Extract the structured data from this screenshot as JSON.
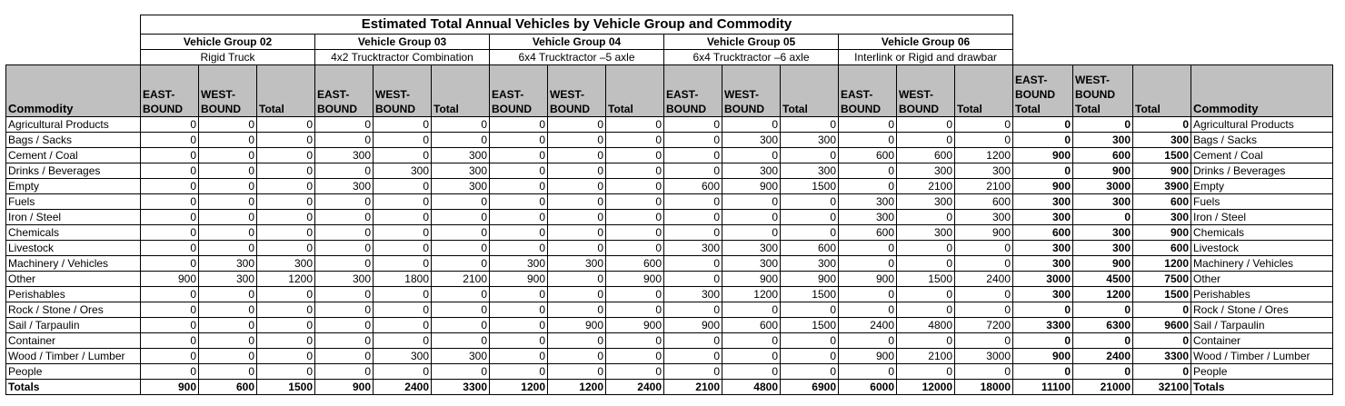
{
  "title": "Estimated Total Annual Vehicles by Vehicle Group and Commodity",
  "groups": [
    {
      "name": "Vehicle Group 02",
      "desc": "Rigid Truck"
    },
    {
      "name": "Vehicle Group 03",
      "desc": "4x2 Trucktractor Combination"
    },
    {
      "name": "Vehicle Group 04",
      "desc": "6x4 Trucktractor –5 axle"
    },
    {
      "name": "Vehicle Group 05",
      "desc": "6x4 Trucktractor –6 axle"
    },
    {
      "name": "Vehicle Group 06",
      "desc": "Interlink or Rigid and drawbar"
    }
  ],
  "headers": {
    "commodity": "Commodity",
    "east": "EAST-BOUND",
    "west": "WEST-BOUND",
    "total": "Total",
    "east_total": "EAST-BOUND Total",
    "west_total": "WEST-BOUND Total",
    "grand_total": "Total",
    "commodity_right": "Commodity"
  },
  "rows": [
    {
      "commodity": "Agricultural Products",
      "values": [
        0,
        0,
        0,
        0,
        0,
        0,
        0,
        0,
        0,
        0,
        0,
        0,
        0,
        0,
        0
      ],
      "totals": [
        0,
        0,
        0
      ]
    },
    {
      "commodity": "Bags / Sacks",
      "values": [
        0,
        0,
        0,
        0,
        0,
        0,
        0,
        0,
        0,
        0,
        300,
        300,
        0,
        0,
        0
      ],
      "totals": [
        0,
        300,
        300
      ]
    },
    {
      "commodity": "Cement / Coal",
      "values": [
        0,
        0,
        0,
        300,
        0,
        300,
        0,
        0,
        0,
        0,
        0,
        0,
        600,
        600,
        1200
      ],
      "totals": [
        900,
        600,
        1500
      ]
    },
    {
      "commodity": "Drinks / Beverages",
      "values": [
        0,
        0,
        0,
        0,
        300,
        300,
        0,
        0,
        0,
        0,
        300,
        300,
        0,
        300,
        300
      ],
      "totals": [
        0,
        900,
        900
      ]
    },
    {
      "commodity": "Empty",
      "values": [
        0,
        0,
        0,
        300,
        0,
        300,
        0,
        0,
        0,
        600,
        900,
        1500,
        0,
        2100,
        2100
      ],
      "totals": [
        900,
        3000,
        3900
      ]
    },
    {
      "commodity": "Fuels",
      "values": [
        0,
        0,
        0,
        0,
        0,
        0,
        0,
        0,
        0,
        0,
        0,
        0,
        300,
        300,
        600
      ],
      "totals": [
        300,
        300,
        600
      ]
    },
    {
      "commodity": "Iron / Steel",
      "values": [
        0,
        0,
        0,
        0,
        0,
        0,
        0,
        0,
        0,
        0,
        0,
        0,
        300,
        0,
        300
      ],
      "totals": [
        300,
        0,
        300
      ]
    },
    {
      "commodity": "Chemicals",
      "values": [
        0,
        0,
        0,
        0,
        0,
        0,
        0,
        0,
        0,
        0,
        0,
        0,
        600,
        300,
        900
      ],
      "totals": [
        600,
        300,
        900
      ]
    },
    {
      "commodity": "Livestock",
      "values": [
        0,
        0,
        0,
        0,
        0,
        0,
        0,
        0,
        0,
        300,
        300,
        600,
        0,
        0,
        0
      ],
      "totals": [
        300,
        300,
        600
      ]
    },
    {
      "commodity": "Machinery / Vehicles",
      "values": [
        0,
        300,
        300,
        0,
        0,
        0,
        300,
        300,
        600,
        0,
        300,
        300,
        0,
        0,
        0
      ],
      "totals": [
        300,
        900,
        1200
      ]
    },
    {
      "commodity": "Other",
      "values": [
        900,
        300,
        1200,
        300,
        1800,
        2100,
        900,
        0,
        900,
        0,
        900,
        900,
        900,
        1500,
        2400
      ],
      "totals": [
        3000,
        4500,
        7500
      ]
    },
    {
      "commodity": "Perishables",
      "values": [
        0,
        0,
        0,
        0,
        0,
        0,
        0,
        0,
        0,
        300,
        1200,
        1500,
        0,
        0,
        0
      ],
      "totals": [
        300,
        1200,
        1500
      ]
    },
    {
      "commodity": "Rock / Stone / Ores",
      "values": [
        0,
        0,
        0,
        0,
        0,
        0,
        0,
        0,
        0,
        0,
        0,
        0,
        0,
        0,
        0
      ],
      "totals": [
        0,
        0,
        0
      ]
    },
    {
      "commodity": "Sail / Tarpaulin",
      "values": [
        0,
        0,
        0,
        0,
        0,
        0,
        0,
        900,
        900,
        900,
        600,
        1500,
        2400,
        4800,
        7200
      ],
      "totals": [
        3300,
        6300,
        9600
      ]
    },
    {
      "commodity": "Container",
      "values": [
        0,
        0,
        0,
        0,
        0,
        0,
        0,
        0,
        0,
        0,
        0,
        0,
        0,
        0,
        0
      ],
      "totals": [
        0,
        0,
        0
      ]
    },
    {
      "commodity": "Wood / Timber / Lumber",
      "values": [
        0,
        0,
        0,
        0,
        300,
        300,
        0,
        0,
        0,
        0,
        0,
        0,
        900,
        2100,
        3000
      ],
      "totals": [
        900,
        2400,
        3300
      ]
    },
    {
      "commodity": "People",
      "values": [
        0,
        0,
        0,
        0,
        0,
        0,
        0,
        0,
        0,
        0,
        0,
        0,
        0,
        0,
        0
      ],
      "totals": [
        0,
        0,
        0
      ]
    }
  ],
  "totals_row": {
    "label": "Totals",
    "values": [
      900,
      600,
      1500,
      900,
      2400,
      3300,
      1200,
      1200,
      2400,
      2100,
      4800,
      6900,
      6000,
      12000,
      18000
    ],
    "totals": [
      11100,
      21000,
      32100
    ]
  }
}
